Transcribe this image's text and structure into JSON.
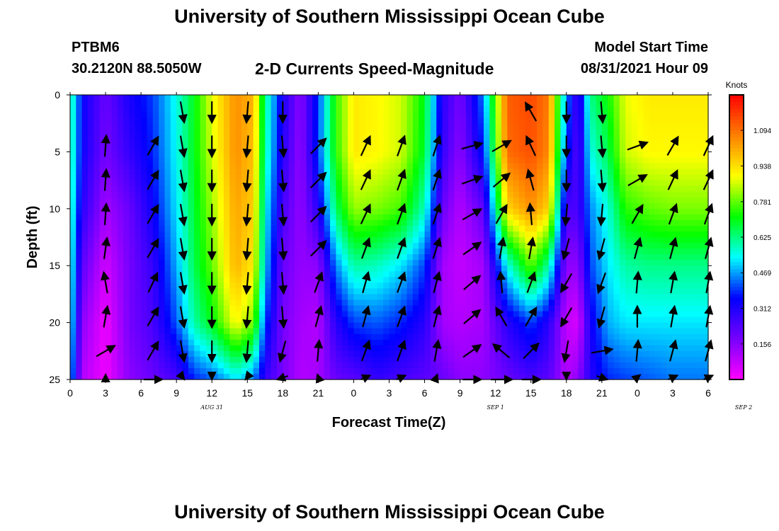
{
  "header": {
    "title": "University of Southern Mississippi Ocean Cube",
    "station_id": "PTBM6",
    "coordinates": "30.2120N  88.5050W",
    "subtitle": "2-D Currents Speed-Magnitude",
    "model_start_label": "Model Start Time",
    "model_start_value": "08/31/2021 Hour 09"
  },
  "footer": {
    "title": "University of Southern Mississippi Ocean Cube"
  },
  "chart_data": {
    "type": "heatmap",
    "title": "2-D Currents Speed-Magnitude",
    "xlabel": "Forecast Time(Z)",
    "ylabel": "Depth (ft)",
    "x_range_hours": [
      0,
      54
    ],
    "ylim": [
      0,
      25
    ],
    "y_inverted": true,
    "x_tick_labels": [
      "0",
      "3",
      "6",
      "9",
      "12",
      "15",
      "18",
      "21",
      "0",
      "3",
      "6",
      "9",
      "12",
      "15",
      "18",
      "21",
      "0",
      "3",
      "6"
    ],
    "y_tick_labels": [
      "0",
      "5",
      "10",
      "15",
      "20",
      "25"
    ],
    "date_labels": [
      {
        "hour": 12,
        "text": "AUG 31"
      },
      {
        "hour": 36,
        "text": "SEP 1"
      },
      {
        "hour": 60,
        "text": "SEP 2"
      }
    ],
    "colorbar": {
      "title": "Knots",
      "range": [
        0,
        1.25
      ],
      "tick_values": [
        1.094,
        0.938,
        0.781,
        0.625,
        0.469,
        0.312,
        0.156
      ],
      "tick_labels": [
        "1.094",
        "0.938",
        "0.781",
        "0.625",
        "0.469",
        "0.312",
        "0.156"
      ],
      "colors": [
        "#ff00ff",
        "#7700ff",
        "#0000ff",
        "#00ffff",
        "#00ff00",
        "#ffff00",
        "#ff8000",
        "#ff0000"
      ]
    },
    "speed_profiles": {
      "note_units": "knots",
      "hours": [
        0,
        1,
        3,
        5,
        7,
        9,
        10.5,
        12,
        14,
        15.5,
        16.5,
        18,
        19.5,
        21,
        22.5,
        24,
        26,
        28,
        30,
        31.5,
        33,
        35,
        37,
        39,
        40.5,
        42,
        43,
        44,
        45.5,
        47,
        49,
        51,
        54
      ],
      "depth_key_ft": [
        0,
        5,
        10,
        15,
        20,
        25
      ],
      "speed_at_depth_keys": [
        [
          0.62,
          0.62,
          0.6,
          0.58,
          0.56,
          0.5
        ],
        [
          0.35,
          0.34,
          0.3,
          0.22,
          0.15,
          0.1
        ],
        [
          0.2,
          0.18,
          0.12,
          0.06,
          0.02,
          0.02
        ],
        [
          0.32,
          0.28,
          0.2,
          0.18,
          0.18,
          0.15
        ],
        [
          0.4,
          0.38,
          0.34,
          0.28,
          0.25,
          0.2
        ],
        [
          0.55,
          0.54,
          0.52,
          0.48,
          0.42,
          0.25
        ],
        [
          0.7,
          0.7,
          0.68,
          0.66,
          0.6,
          0.38
        ],
        [
          0.88,
          0.86,
          0.82,
          0.78,
          0.7,
          0.42
        ],
        [
          1.05,
          1.05,
          1.02,
          1.0,
          0.9,
          0.52
        ],
        [
          1.0,
          0.98,
          0.96,
          0.92,
          0.8,
          0.45
        ],
        [
          0.62,
          0.6,
          0.55,
          0.5,
          0.4,
          0.28
        ],
        [
          0.32,
          0.3,
          0.25,
          0.2,
          0.18,
          0.18
        ],
        [
          0.15,
          0.14,
          0.14,
          0.14,
          0.12,
          0.1
        ],
        [
          0.4,
          0.4,
          0.3,
          0.15,
          0.1,
          0.12
        ],
        [
          0.75,
          0.74,
          0.65,
          0.45,
          0.3,
          0.2
        ],
        [
          0.92,
          0.92,
          0.82,
          0.6,
          0.4,
          0.22
        ],
        [
          0.9,
          0.9,
          0.8,
          0.58,
          0.42,
          0.28
        ],
        [
          0.86,
          0.86,
          0.76,
          0.52,
          0.38,
          0.25
        ],
        [
          0.7,
          0.68,
          0.58,
          0.4,
          0.3,
          0.22
        ],
        [
          0.3,
          0.28,
          0.2,
          0.12,
          0.12,
          0.2
        ],
        [
          0.18,
          0.15,
          0.1,
          0.08,
          0.1,
          0.15
        ],
        [
          0.45,
          0.38,
          0.22,
          0.12,
          0.12,
          0.15
        ],
        [
          1.12,
          1.1,
          0.95,
          0.55,
          0.3,
          0.2
        ],
        [
          1.15,
          1.14,
          1.05,
          0.78,
          0.4,
          0.25
        ],
        [
          1.08,
          1.06,
          0.95,
          0.6,
          0.3,
          0.22
        ],
        [
          0.45,
          0.4,
          0.25,
          0.15,
          0.08,
          0.1
        ],
        [
          0.25,
          0.22,
          0.25,
          0.15,
          0.05,
          0.15
        ],
        [
          0.62,
          0.55,
          0.45,
          0.4,
          0.32,
          0.3
        ],
        [
          0.72,
          0.66,
          0.56,
          0.52,
          0.48,
          0.38
        ],
        [
          0.88,
          0.86,
          0.74,
          0.6,
          0.52,
          0.4
        ],
        [
          0.92,
          0.9,
          0.78,
          0.62,
          0.52,
          0.42
        ],
        [
          0.92,
          0.9,
          0.8,
          0.62,
          0.52,
          0.44
        ],
        [
          0.92,
          0.9,
          0.8,
          0.62,
          0.52,
          0.44
        ]
      ]
    },
    "vector_field": {
      "depths_ft": [
        0,
        3,
        6,
        9,
        12,
        15,
        18,
        21,
        24,
        27
      ],
      "columns": [
        {
          "hour": 3,
          "dirs_deg": [
            null,
            4,
            4,
            4,
            8,
            350,
            10,
            60,
            0,
            null
          ]
        },
        {
          "hour": 7,
          "dirs_deg": [
            null,
            30,
            30,
            30,
            30,
            25,
            30,
            30,
            60,
            60
          ]
        },
        {
          "hour": 9.5,
          "dirs_deg": [
            170,
            170,
            170,
            170,
            170,
            170,
            170,
            170,
            170,
            170
          ]
        },
        {
          "hour": 12,
          "dirs_deg": [
            180,
            180,
            180,
            180,
            180,
            180,
            180,
            180,
            180,
            180
          ]
        },
        {
          "hour": 15,
          "dirs_deg": [
            185,
            185,
            185,
            185,
            185,
            185,
            185,
            185,
            190,
            190
          ]
        },
        {
          "hour": 18,
          "dirs_deg": [
            180,
            175,
            175,
            175,
            175,
            175,
            175,
            195,
            210,
            210
          ]
        },
        {
          "hour": 21,
          "dirs_deg": [
            null,
            45,
            45,
            45,
            45,
            20,
            15,
            5,
            355,
            null
          ]
        },
        {
          "hour": 25,
          "dirs_deg": [
            null,
            25,
            25,
            25,
            20,
            15,
            15,
            20,
            25,
            25
          ]
        },
        {
          "hour": 28,
          "dirs_deg": [
            null,
            20,
            20,
            20,
            20,
            20,
            20,
            20,
            25,
            25
          ]
        },
        {
          "hour": 31,
          "dirs_deg": [
            null,
            18,
            18,
            18,
            18,
            15,
            15,
            10,
            5,
            null
          ]
        },
        {
          "hour": 34,
          "dirs_deg": [
            null,
            75,
            70,
            60,
            55,
            50,
            50,
            55,
            60,
            80
          ]
        },
        {
          "hour": 36.5,
          "dirs_deg": [
            null,
            60,
            50,
            30,
            10,
            355,
            330,
            310,
            95,
            null
          ]
        },
        {
          "hour": 39,
          "dirs_deg": [
            330,
            335,
            345,
            355,
            10,
            20,
            30,
            45,
            60,
            null
          ]
        },
        {
          "hour": 42,
          "dirs_deg": [
            180,
            180,
            180,
            185,
            195,
            210,
            210,
            190,
            180,
            null
          ]
        },
        {
          "hour": 45,
          "dirs_deg": [
            175,
            175,
            175,
            185,
            195,
            200,
            195,
            80,
            150,
            null
          ]
        },
        {
          "hour": 48,
          "dirs_deg": [
            null,
            70,
            60,
            30,
            15,
            5,
            0,
            5,
            15,
            null
          ]
        },
        {
          "hour": 51,
          "dirs_deg": [
            null,
            30,
            25,
            20,
            15,
            10,
            10,
            15,
            25,
            null
          ]
        },
        {
          "hour": 54,
          "dirs_deg": [
            null,
            25,
            25,
            20,
            15,
            10,
            10,
            15,
            25,
            null
          ]
        }
      ]
    },
    "grid": false,
    "legend": "right"
  }
}
